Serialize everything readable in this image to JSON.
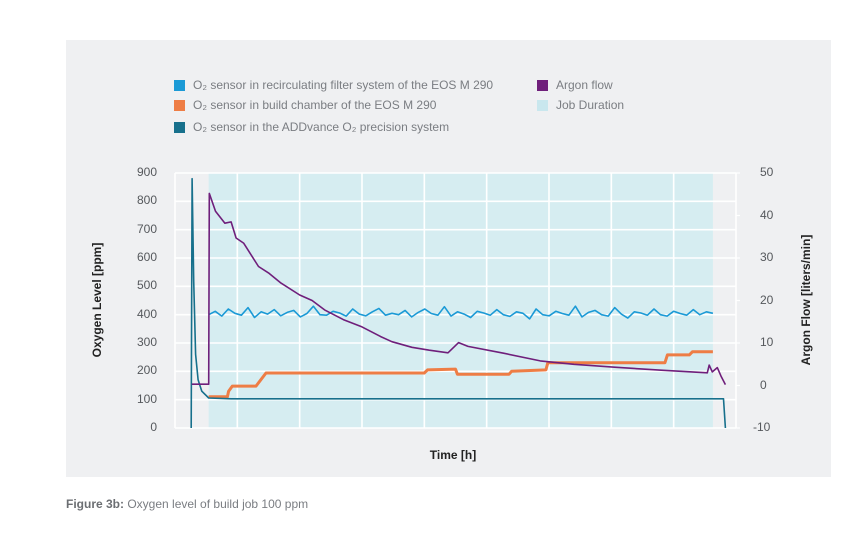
{
  "caption": {
    "label": "Figure 3b:",
    "text": " Oxygen level of build job 100 ppm"
  },
  "legend": [
    {
      "label": "O₂ sensor in recirculating filter system of the EOS M 290",
      "color": "#1b9ad6"
    },
    {
      "label": "O₂ sensor in build chamber of the EOS M 290",
      "color": "#ee7d45"
    },
    {
      "label": "O₂ sensor in the ADDvance O₂ precision system",
      "color": "#17708c"
    },
    {
      "label": "Argon flow",
      "color": "#6f1f7b"
    },
    {
      "label": "Job Duration",
      "color": "#c9e7ee"
    }
  ],
  "chart_data": {
    "type": "line",
    "title": "",
    "xlabel": "Time [h]",
    "ylabel": "Oxygen Level [ppm]",
    "y2label": "Argon Flow [liters/min]",
    "xlim": [
      0,
      90
    ],
    "ylim": [
      0,
      900
    ],
    "y2lim": [
      -10,
      50
    ],
    "yticks": [
      "900",
      "800",
      "700",
      "600",
      "500",
      "400",
      "300",
      "200",
      "100",
      "0"
    ],
    "y2ticks": [
      "50",
      "40",
      "30",
      "20",
      "10",
      "0",
      "-10"
    ],
    "grid": true,
    "job_duration": [
      5.4,
      86.3
    ],
    "series": [
      {
        "name": "O₂ sensor in recirculating filter system of the EOS M 290",
        "axis": "left",
        "x_start": 5.4,
        "x_end": 86.3,
        "values": [
          400,
          412,
          395,
          420,
          405,
          398,
          425,
          390,
          410,
          402,
          418,
          396,
          408,
          415,
          392,
          404,
          430,
          400,
          398,
          412,
          406,
          395,
          420,
          402,
          396,
          410,
          422,
          398,
          405,
          400,
          415,
          392,
          408,
          420,
          404,
          398,
          428,
          395,
          410,
          402,
          390,
          412,
          406,
          398,
          418,
          400,
          394,
          410,
          405,
          385,
          420,
          400,
          396,
          412,
          404,
          398,
          430,
          392,
          408,
          415,
          400,
          395,
          425,
          402,
          388,
          410,
          406,
          398,
          420,
          400,
          395,
          412,
          404,
          398,
          418,
          400,
          410,
          405
        ],
        "color": "#1b9ad6"
      },
      {
        "name": "O₂ sensor in build chamber of the EOS M 290",
        "axis": "left",
        "points": [
          [
            5.4,
            110
          ],
          [
            8.4,
            110
          ],
          [
            8.6,
            130
          ],
          [
            9.2,
            148
          ],
          [
            13,
            148
          ],
          [
            14.6,
            194
          ],
          [
            40,
            194
          ],
          [
            40.5,
            205
          ],
          [
            45,
            208
          ],
          [
            45.3,
            190
          ],
          [
            53.6,
            190
          ],
          [
            54,
            200
          ],
          [
            59.5,
            205
          ],
          [
            59.8,
            230
          ],
          [
            78.6,
            230
          ],
          [
            79,
            258
          ],
          [
            82.5,
            258
          ],
          [
            83,
            269
          ],
          [
            86.3,
            269
          ]
        ],
        "color": "#ee7d45"
      },
      {
        "name": "O₂ sensor in the ADDvance O₂ precision system",
        "axis": "left",
        "points": [
          [
            2.6,
            0
          ],
          [
            2.75,
            880
          ],
          [
            3.0,
            520
          ],
          [
            3.3,
            260
          ],
          [
            3.7,
            170
          ],
          [
            4.3,
            130
          ],
          [
            5.4,
            106
          ],
          [
            9,
            103
          ],
          [
            86,
            103
          ],
          [
            88.0,
            103
          ],
          [
            88.3,
            0
          ]
        ],
        "color": "#17708c"
      },
      {
        "name": "Argon flow",
        "axis": "right",
        "points": [
          [
            2.7,
            0.3
          ],
          [
            5.4,
            0.3
          ],
          [
            5.5,
            45.2
          ],
          [
            6.5,
            41
          ],
          [
            8,
            38.2
          ],
          [
            9,
            38.5
          ],
          [
            9.8,
            34.7
          ],
          [
            11,
            33.5
          ],
          [
            13.4,
            28
          ],
          [
            15,
            26.5
          ],
          [
            17,
            24.1
          ],
          [
            20,
            21.3
          ],
          [
            22,
            20
          ],
          [
            24,
            17.8
          ],
          [
            27,
            15.5
          ],
          [
            30,
            13.8
          ],
          [
            33,
            11.5
          ],
          [
            34.8,
            10.3
          ],
          [
            38,
            9
          ],
          [
            40.8,
            8.3
          ],
          [
            43.8,
            7.7
          ],
          [
            45.5,
            10.1
          ],
          [
            47,
            9.2
          ],
          [
            52.7,
            7.6
          ],
          [
            58.6,
            5.8
          ],
          [
            64,
            5
          ],
          [
            70.5,
            4.3
          ],
          [
            78,
            3.6
          ],
          [
            85.4,
            3.0
          ],
          [
            85.7,
            4.8
          ],
          [
            86.2,
            3.2
          ],
          [
            87,
            4.2
          ],
          [
            87.6,
            2.2
          ],
          [
            88.3,
            0.2
          ]
        ],
        "color": "#6f1f7b"
      }
    ]
  }
}
